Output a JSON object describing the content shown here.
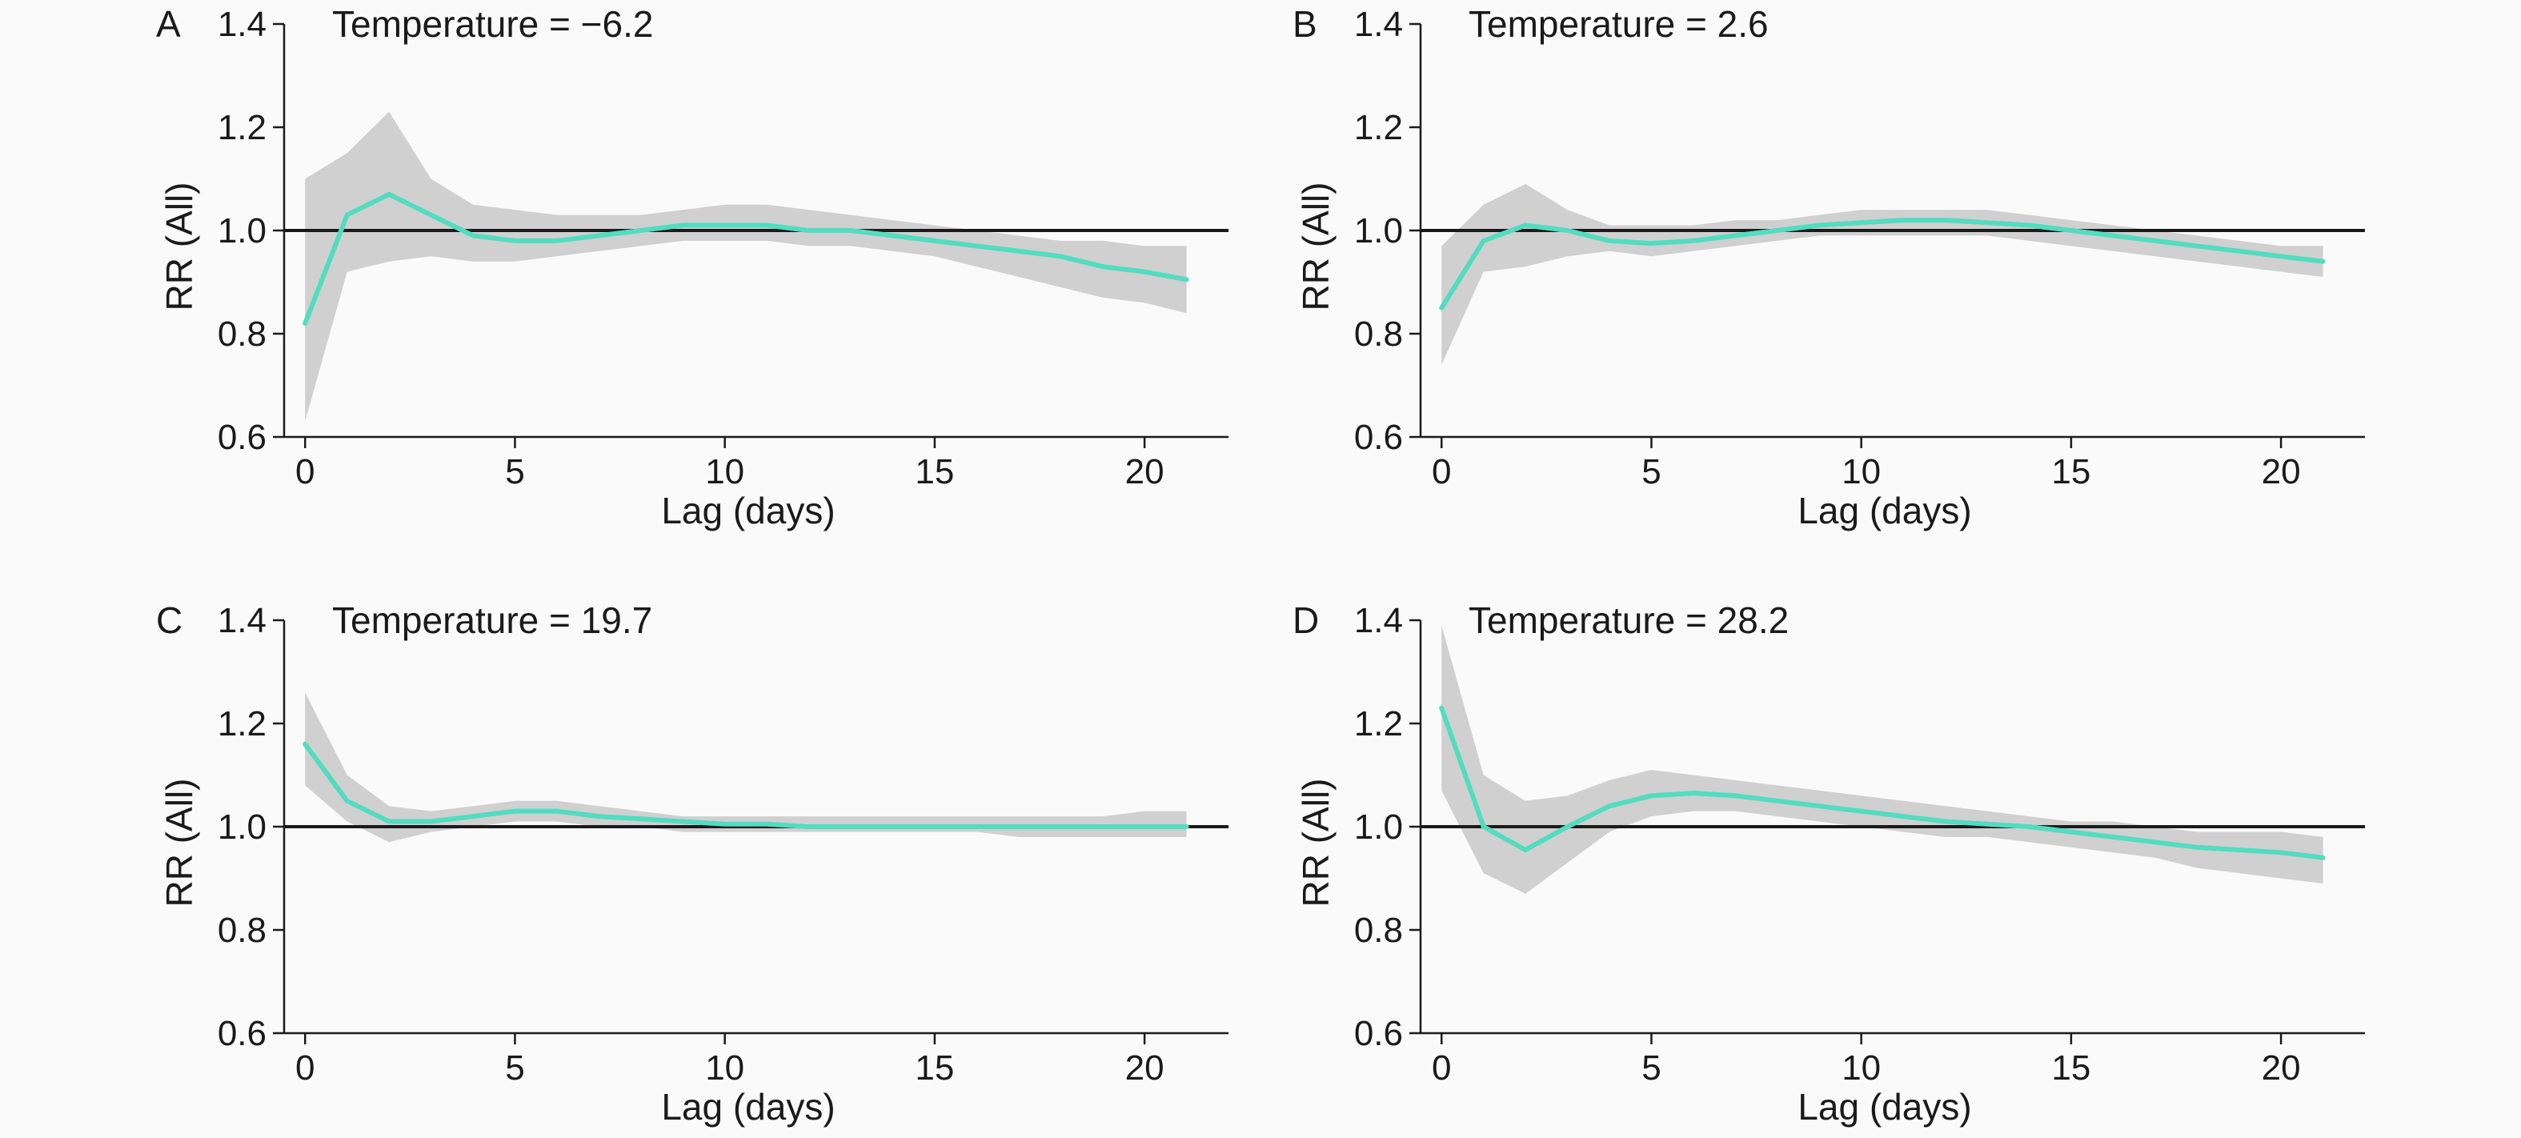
{
  "colors": {
    "background": "#fafafa",
    "line": "#52dcc0",
    "band": "#c8c8c8",
    "axis": "#1a1a1a",
    "reference_line": "#1a1a1a"
  },
  "chart_data": [
    {
      "type": "line",
      "panel_letter": "A",
      "title": "Temperature = −6.2",
      "xlabel": "Lag (days)",
      "ylabel": "RR (All)",
      "xlim": [
        -0.5,
        22
      ],
      "ylim": [
        0.6,
        1.4
      ],
      "xticks": [
        "0",
        "5",
        "10",
        "15",
        "20"
      ],
      "yticks": [
        "0.6",
        "0.8",
        "1.0",
        "1.2",
        "1.4"
      ],
      "reference_y": 1.0,
      "grid": false,
      "legend": "none",
      "series": [
        {
          "x": [
            0,
            1,
            2,
            3,
            4,
            5,
            6,
            7,
            8,
            9,
            10,
            11,
            12,
            13,
            14,
            15,
            16,
            17,
            18,
            19,
            20,
            21
          ],
          "y": [
            0.82,
            1.03,
            1.07,
            1.03,
            0.99,
            0.98,
            0.98,
            0.99,
            1.0,
            1.01,
            1.01,
            1.01,
            1.0,
            1.0,
            0.99,
            0.98,
            0.97,
            0.96,
            0.95,
            0.93,
            0.92,
            0.905
          ],
          "lower": [
            0.63,
            0.92,
            0.94,
            0.95,
            0.94,
            0.94,
            0.95,
            0.96,
            0.97,
            0.98,
            0.98,
            0.98,
            0.97,
            0.97,
            0.96,
            0.95,
            0.93,
            0.91,
            0.89,
            0.87,
            0.86,
            0.84
          ],
          "upper": [
            1.1,
            1.15,
            1.23,
            1.1,
            1.05,
            1.04,
            1.03,
            1.03,
            1.03,
            1.04,
            1.05,
            1.05,
            1.04,
            1.03,
            1.02,
            1.01,
            1.0,
            0.99,
            0.98,
            0.98,
            0.97,
            0.97
          ]
        }
      ]
    },
    {
      "type": "line",
      "panel_letter": "B",
      "title": "Temperature = 2.6",
      "xlabel": "Lag (days)",
      "ylabel": "RR (All)",
      "xlim": [
        -0.5,
        22
      ],
      "ylim": [
        0.6,
        1.4
      ],
      "xticks": [
        "0",
        "5",
        "10",
        "15",
        "20"
      ],
      "yticks": [
        "0.6",
        "0.8",
        "1.0",
        "1.2",
        "1.4"
      ],
      "reference_y": 1.0,
      "grid": false,
      "legend": "none",
      "series": [
        {
          "x": [
            0,
            1,
            2,
            3,
            4,
            5,
            6,
            7,
            8,
            9,
            10,
            11,
            12,
            13,
            14,
            15,
            16,
            17,
            18,
            19,
            20,
            21
          ],
          "y": [
            0.85,
            0.98,
            1.01,
            1.0,
            0.98,
            0.975,
            0.98,
            0.99,
            1.0,
            1.01,
            1.015,
            1.02,
            1.02,
            1.015,
            1.01,
            1.0,
            0.99,
            0.98,
            0.97,
            0.96,
            0.95,
            0.94
          ],
          "lower": [
            0.74,
            0.92,
            0.93,
            0.95,
            0.96,
            0.95,
            0.96,
            0.97,
            0.98,
            0.99,
            0.99,
            0.99,
            0.99,
            0.99,
            0.98,
            0.97,
            0.96,
            0.95,
            0.94,
            0.93,
            0.92,
            0.91
          ],
          "upper": [
            0.97,
            1.05,
            1.09,
            1.04,
            1.01,
            1.01,
            1.01,
            1.02,
            1.02,
            1.03,
            1.04,
            1.04,
            1.04,
            1.04,
            1.03,
            1.02,
            1.01,
            1.0,
            0.99,
            0.98,
            0.97,
            0.97
          ]
        }
      ]
    },
    {
      "type": "line",
      "panel_letter": "C",
      "title": "Temperature = 19.7",
      "xlabel": "Lag (days)",
      "ylabel": "RR (All)",
      "xlim": [
        -0.5,
        22
      ],
      "ylim": [
        0.6,
        1.4
      ],
      "xticks": [
        "0",
        "5",
        "10",
        "15",
        "20"
      ],
      "yticks": [
        "0.6",
        "0.8",
        "1.0",
        "1.2",
        "1.4"
      ],
      "reference_y": 1.0,
      "grid": false,
      "legend": "none",
      "series": [
        {
          "x": [
            0,
            1,
            2,
            3,
            4,
            5,
            6,
            7,
            8,
            9,
            10,
            11,
            12,
            13,
            14,
            15,
            16,
            17,
            18,
            19,
            20,
            21
          ],
          "y": [
            1.16,
            1.05,
            1.01,
            1.01,
            1.02,
            1.03,
            1.03,
            1.02,
            1.015,
            1.01,
            1.005,
            1.005,
            1.0,
            1.0,
            1.0,
            1.0,
            1.0,
            1.0,
            1.0,
            1.0,
            1.0,
            1.0
          ],
          "lower": [
            1.08,
            1.01,
            0.97,
            0.99,
            1.0,
            1.01,
            1.01,
            1.0,
            1.0,
            0.99,
            0.99,
            0.99,
            0.99,
            0.99,
            0.99,
            0.99,
            0.99,
            0.98,
            0.98,
            0.98,
            0.98,
            0.98
          ],
          "upper": [
            1.26,
            1.1,
            1.04,
            1.03,
            1.04,
            1.05,
            1.05,
            1.04,
            1.03,
            1.02,
            1.02,
            1.02,
            1.02,
            1.02,
            1.02,
            1.02,
            1.02,
            1.02,
            1.02,
            1.02,
            1.03,
            1.03
          ]
        }
      ]
    },
    {
      "type": "line",
      "panel_letter": "D",
      "title": "Temperature = 28.2",
      "xlabel": "Lag (days)",
      "ylabel": "RR (All)",
      "xlim": [
        -0.5,
        22
      ],
      "ylim": [
        0.6,
        1.4
      ],
      "xticks": [
        "0",
        "5",
        "10",
        "15",
        "20"
      ],
      "yticks": [
        "0.6",
        "0.8",
        "1.0",
        "1.2",
        "1.4"
      ],
      "reference_y": 1.0,
      "grid": false,
      "legend": "none",
      "series": [
        {
          "x": [
            0,
            1,
            2,
            3,
            4,
            5,
            6,
            7,
            8,
            9,
            10,
            11,
            12,
            13,
            14,
            15,
            16,
            17,
            18,
            19,
            20,
            21
          ],
          "y": [
            1.23,
            1.0,
            0.955,
            1.0,
            1.04,
            1.06,
            1.065,
            1.06,
            1.05,
            1.04,
            1.03,
            1.02,
            1.01,
            1.005,
            1.0,
            0.99,
            0.98,
            0.97,
            0.96,
            0.955,
            0.95,
            0.94
          ],
          "lower": [
            1.07,
            0.91,
            0.87,
            0.93,
            0.99,
            1.02,
            1.03,
            1.03,
            1.02,
            1.01,
            1.0,
            0.99,
            0.98,
            0.98,
            0.97,
            0.96,
            0.95,
            0.94,
            0.92,
            0.91,
            0.9,
            0.89
          ],
          "upper": [
            1.39,
            1.1,
            1.05,
            1.06,
            1.09,
            1.11,
            1.1,
            1.09,
            1.08,
            1.07,
            1.06,
            1.05,
            1.04,
            1.03,
            1.02,
            1.01,
            1.01,
            1.0,
            0.99,
            0.99,
            0.99,
            0.98
          ]
        }
      ]
    }
  ]
}
